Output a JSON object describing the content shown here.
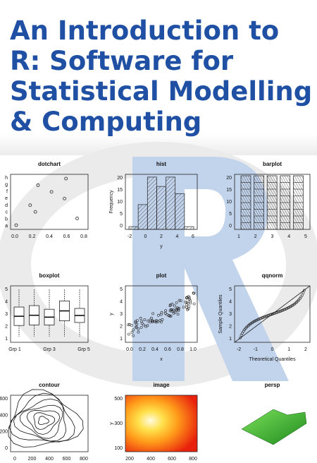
{
  "title_lines": [
    "An Introduction to",
    "R: Software for",
    "Statistical Modelling",
    "& Computing"
  ],
  "panels": [
    {
      "title": "dotchart",
      "xticks": [
        "0.0",
        "0.2",
        "0.4",
        "0.6",
        "0.8"
      ],
      "yticks": [
        "a",
        "b",
        "c",
        "d",
        "e",
        "f",
        "g",
        "h"
      ]
    },
    {
      "title": "hist",
      "xlabel": "y",
      "ylabel": "Frequency",
      "xticks": [
        "-2",
        "0",
        "2",
        "4",
        "6"
      ],
      "yticks": [
        "0",
        "5",
        "10",
        "15",
        "20"
      ]
    },
    {
      "title": "barplot",
      "xticks": [
        "1",
        "2",
        "3",
        "4",
        "5"
      ],
      "yticks": [
        "0",
        "5",
        "10",
        "15",
        "20"
      ]
    },
    {
      "title": "boxplot",
      "xticks": [
        "Grp 1",
        "Grp 3",
        "Grp 5"
      ],
      "yticks": [
        "1",
        "2",
        "3",
        "4",
        "5"
      ]
    },
    {
      "title": "plot",
      "xlabel": "x",
      "ylabel": "y",
      "xticks": [
        "0.0",
        "0.2",
        "0.4",
        "0.6",
        "0.8",
        "1.0"
      ],
      "yticks": [
        "1",
        "2",
        "3",
        "4",
        "5"
      ]
    },
    {
      "title": "qqnorm",
      "xlabel": "Theoretical Quantiles",
      "ylabel": "Sample Quantiles",
      "xticks": [
        "-2",
        "-1",
        "0",
        "1",
        "2"
      ],
      "yticks": [
        "1",
        "2",
        "3",
        "4",
        "5"
      ]
    },
    {
      "title": "contour",
      "xticks": [
        "0",
        "200",
        "400",
        "600",
        "800"
      ],
      "yticks": [
        "0",
        "200",
        "400",
        "600"
      ]
    },
    {
      "title": "image",
      "ylabel": "y",
      "xticks": [
        "200",
        "400",
        "600",
        "800"
      ],
      "yticks": [
        "100",
        "300",
        "500"
      ]
    },
    {
      "title": "persp"
    }
  ]
}
